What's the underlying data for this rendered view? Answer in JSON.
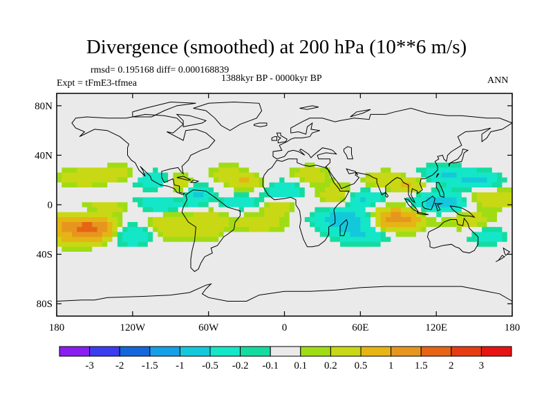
{
  "chart_data": {
    "type": "heatmap",
    "title": "Divergence (smoothed) at 200 hPa (10**6 m/s)",
    "stats": "rmsd= 0.195168 diff= 0.000168839",
    "experiment": "Expt = tFmE3-tfmea",
    "period": "1388kyr BP - 0000kyr BP",
    "season": "ANN",
    "projection": "cylindrical equidistant",
    "x_ticks": [
      "180",
      "120W",
      "60W",
      "0",
      "60E",
      "120E",
      "180"
    ],
    "y_ticks": [
      "80N",
      "40N",
      "0",
      "40S",
      "80S"
    ],
    "xlim": [
      -180,
      180
    ],
    "ylim": [
      -90,
      90
    ],
    "colorbar": {
      "labels": [
        "-3",
        "-2",
        "-1.5",
        "-1",
        "-0.5",
        "-0.2",
        "-0.1",
        "0.1",
        "0.2",
        "0.5",
        "1",
        "1.5",
        "2",
        "3"
      ],
      "colors": [
        "#8a1ef0",
        "#3c3cf0",
        "#1466dc",
        "#14a0e6",
        "#14c8dc",
        "#14e6c8",
        "#14dca0",
        "#eaeaea",
        "#a0dc14",
        "#c8d814",
        "#e6b414",
        "#e6961e",
        "#e66414",
        "#e63c14",
        "#e61414"
      ]
    },
    "anomaly_fields": [
      {
        "lon": -170,
        "lat": -17,
        "val": 1.0,
        "slon": 18,
        "slat": 9
      },
      {
        "lon": -150,
        "lat": -20,
        "val": 1.2,
        "slon": 12,
        "slat": 6
      },
      {
        "lon": -120,
        "lat": -24,
        "val": -0.6,
        "slon": 12,
        "slat": 6
      },
      {
        "lon": -90,
        "lat": -18,
        "val": 0.5,
        "slon": 15,
        "slat": 7
      },
      {
        "lon": -165,
        "lat": -5,
        "val": -0.5,
        "slon": 14,
        "slat": 4
      },
      {
        "lon": -140,
        "lat": -2,
        "val": 0.35,
        "slon": 18,
        "slat": 3
      },
      {
        "lon": -100,
        "lat": 0,
        "val": -0.5,
        "slon": 14,
        "slat": 4
      },
      {
        "lon": -160,
        "lat": 22,
        "val": 0.45,
        "slon": 12,
        "slat": 5
      },
      {
        "lon": -130,
        "lat": 25,
        "val": 0.3,
        "slon": 12,
        "slat": 5
      },
      {
        "lon": -105,
        "lat": 20,
        "val": -0.45,
        "slon": 10,
        "slat": 5
      },
      {
        "lon": -82,
        "lat": 18,
        "val": 0.4,
        "slon": 7,
        "slat": 5
      },
      {
        "lon": -68,
        "lat": 8,
        "val": -0.55,
        "slon": 7,
        "slat": 6
      },
      {
        "lon": -60,
        "lat": -15,
        "val": 0.4,
        "slon": 10,
        "slat": 8
      },
      {
        "lon": -45,
        "lat": 25,
        "val": 0.35,
        "slon": 10,
        "slat": 5
      },
      {
        "lon": -30,
        "lat": 18,
        "val": 0.5,
        "slon": 9,
        "slat": 4
      },
      {
        "lon": -35,
        "lat": 2,
        "val": -0.4,
        "slon": 12,
        "slat": 4
      },
      {
        "lon": -20,
        "lat": -15,
        "val": 0.4,
        "slon": 14,
        "slat": 5
      },
      {
        "lon": -5,
        "lat": -2,
        "val": 0.5,
        "slon": 8,
        "slat": 4
      },
      {
        "lon": 0,
        "lat": 12,
        "val": -0.5,
        "slon": 10,
        "slat": 5
      },
      {
        "lon": 20,
        "lat": 24,
        "val": 0.4,
        "slon": 10,
        "slat": 5
      },
      {
        "lon": 42,
        "lat": 8,
        "val": 0.5,
        "slon": 10,
        "slat": 6
      },
      {
        "lon": 62,
        "lat": 5,
        "val": -0.6,
        "slon": 12,
        "slat": 5
      },
      {
        "lon": 50,
        "lat": -12,
        "val": -1.0,
        "slon": 16,
        "slat": 6
      },
      {
        "lon": 75,
        "lat": -10,
        "val": 0.3,
        "slon": 20,
        "slat": 8
      },
      {
        "lon": 62,
        "lat": -25,
        "val": -0.5,
        "slon": 15,
        "slat": 5
      },
      {
        "lon": 90,
        "lat": -12,
        "val": 1.1,
        "slon": 12,
        "slat": 6
      },
      {
        "lon": 80,
        "lat": 20,
        "val": 0.4,
        "slon": 12,
        "slat": 5
      },
      {
        "lon": 100,
        "lat": 15,
        "val": 0.5,
        "slon": 10,
        "slat": 4
      },
      {
        "lon": 125,
        "lat": 2,
        "val": -0.9,
        "slon": 15,
        "slat": 6
      },
      {
        "lon": 125,
        "lat": 25,
        "val": -0.5,
        "slon": 12,
        "slat": 5
      },
      {
        "lon": 162,
        "lat": 5,
        "val": 0.5,
        "slon": 18,
        "slat": 5
      },
      {
        "lon": 152,
        "lat": 20,
        "val": -0.6,
        "slon": 12,
        "slat": 5
      },
      {
        "lon": 145,
        "lat": -12,
        "val": 0.35,
        "slon": 14,
        "slat": 6
      },
      {
        "lon": 160,
        "lat": -25,
        "val": -0.4,
        "slon": 10,
        "slat": 5
      }
    ]
  }
}
